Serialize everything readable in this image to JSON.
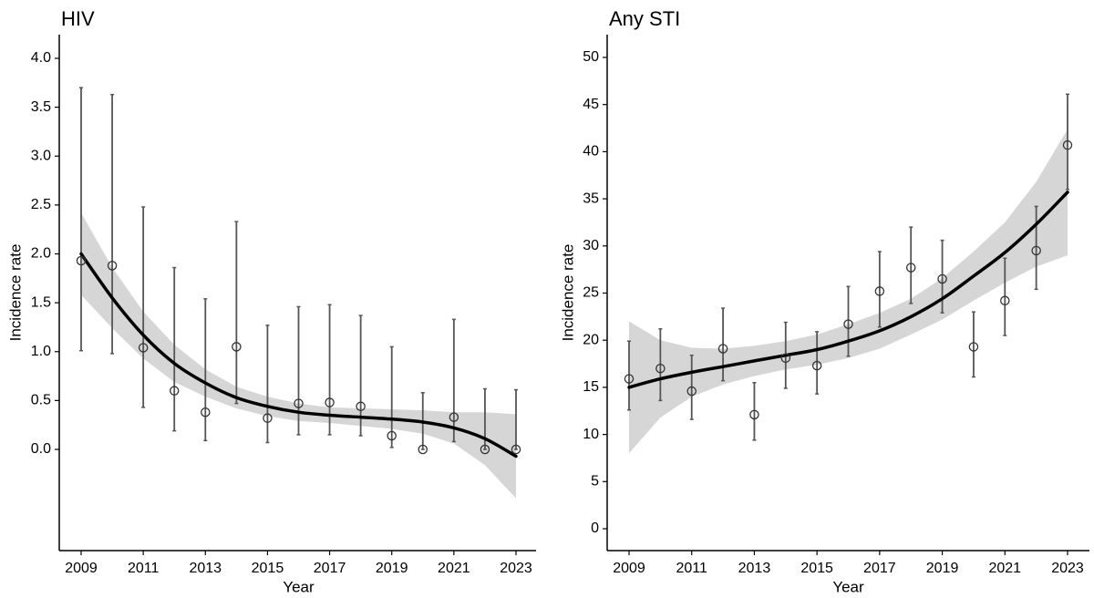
{
  "chart_data": [
    {
      "type": "scatter",
      "title": "HIV",
      "xlabel": "Year",
      "ylabel": "Incidence rate",
      "xlim": [
        2009,
        2023
      ],
      "ylim": [
        0.0,
        4.0
      ],
      "x_ticks": [
        "2009",
        "2011",
        "2013",
        "2015",
        "2017",
        "2019",
        "2021",
        "2023"
      ],
      "y_ticks": [
        "0.0",
        "0.5",
        "1.0",
        "1.5",
        "2.0",
        "2.5",
        "3.0",
        "3.5",
        "4.0"
      ],
      "grid": false,
      "legend": "none",
      "points": {
        "x": [
          2009,
          2010,
          2011,
          2012,
          2013,
          2014,
          2015,
          2016,
          2017,
          2018,
          2019,
          2020,
          2021,
          2022,
          2023
        ],
        "y": [
          1.93,
          1.88,
          1.04,
          0.6,
          0.38,
          1.05,
          0.32,
          0.47,
          0.48,
          0.44,
          0.14,
          0.0,
          0.33,
          0.0,
          0.0
        ],
        "lower": [
          1.01,
          0.98,
          0.43,
          0.19,
          0.09,
          0.47,
          0.07,
          0.15,
          0.15,
          0.14,
          0.02,
          0.0,
          0.08,
          0.0,
          0.0
        ],
        "upper": [
          3.7,
          3.63,
          2.48,
          1.86,
          1.54,
          2.33,
          1.27,
          1.46,
          1.48,
          1.37,
          1.05,
          0.58,
          1.33,
          0.62,
          0.61
        ]
      },
      "fit": {
        "x": [
          2009,
          2010,
          2011,
          2012,
          2013,
          2014,
          2015,
          2016,
          2017,
          2018,
          2019,
          2020,
          2021,
          2022,
          2023
        ],
        "y": [
          2.0,
          1.55,
          1.17,
          0.88,
          0.68,
          0.53,
          0.44,
          0.38,
          0.35,
          0.33,
          0.31,
          0.28,
          0.22,
          0.11,
          -0.07
        ],
        "lower": [
          1.58,
          1.24,
          0.93,
          0.69,
          0.54,
          0.42,
          0.34,
          0.29,
          0.27,
          0.24,
          0.21,
          0.16,
          0.06,
          -0.16,
          -0.5
        ],
        "upper": [
          2.42,
          1.86,
          1.41,
          1.07,
          0.82,
          0.64,
          0.54,
          0.47,
          0.43,
          0.42,
          0.41,
          0.4,
          0.38,
          0.38,
          0.36
        ]
      },
      "colors": {
        "line": "#000000",
        "band": "#d6d6d6",
        "error_bar": "#555555",
        "point": "#333333"
      }
    },
    {
      "type": "scatter",
      "title": "Any STI",
      "xlabel": "Year",
      "ylabel": "Incidence rate",
      "xlim": [
        2009,
        2023
      ],
      "ylim": [
        0,
        50
      ],
      "x_ticks": [
        "2009",
        "2011",
        "2013",
        "2015",
        "2017",
        "2019",
        "2021",
        "2023"
      ],
      "y_ticks": [
        "0",
        "5",
        "10",
        "15",
        "20",
        "25",
        "30",
        "35",
        "40",
        "45",
        "50"
      ],
      "grid": false,
      "legend": "none",
      "points": {
        "x": [
          2009,
          2010,
          2011,
          2012,
          2013,
          2014,
          2015,
          2016,
          2017,
          2018,
          2019,
          2020,
          2021,
          2022,
          2023
        ],
        "y": [
          15.9,
          17.0,
          14.6,
          19.1,
          12.1,
          18.1,
          17.3,
          21.7,
          25.2,
          27.7,
          26.5,
          19.3,
          24.2,
          29.5,
          40.7
        ],
        "lower": [
          12.6,
          13.6,
          11.6,
          15.7,
          9.4,
          14.9,
          14.3,
          18.3,
          21.4,
          23.9,
          22.9,
          16.1,
          20.5,
          25.4,
          36.0
        ],
        "upper": [
          19.9,
          21.2,
          18.4,
          23.4,
          15.5,
          21.9,
          20.9,
          25.7,
          29.4,
          32.0,
          30.6,
          23.0,
          28.7,
          34.2,
          46.1
        ]
      },
      "fit": {
        "x": [
          2009,
          2010,
          2011,
          2012,
          2013,
          2014,
          2015,
          2016,
          2017,
          2018,
          2019,
          2020,
          2021,
          2022,
          2023
        ],
        "y": [
          15.0,
          15.9,
          16.6,
          17.2,
          17.8,
          18.4,
          19.0,
          19.9,
          21.0,
          22.5,
          24.4,
          26.8,
          29.3,
          32.3,
          35.7
        ],
        "lower": [
          8.0,
          11.8,
          14.0,
          15.3,
          16.2,
          16.9,
          17.4,
          18.1,
          19.1,
          20.6,
          22.2,
          24.2,
          26.1,
          27.8,
          29.0
        ],
        "upper": [
          22.0,
          20.0,
          19.2,
          19.1,
          19.4,
          19.9,
          20.6,
          21.7,
          22.9,
          24.4,
          26.6,
          29.4,
          32.5,
          36.8,
          42.4
        ]
      },
      "colors": {
        "line": "#000000",
        "band": "#d6d6d6",
        "error_bar": "#555555",
        "point": "#333333"
      }
    }
  ]
}
